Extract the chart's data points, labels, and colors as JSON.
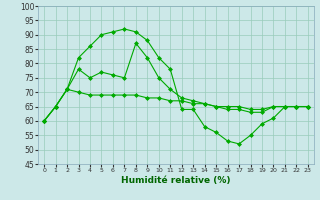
{
  "xlabel": "Humidité relative (%)",
  "xlim": [
    -0.5,
    23.5
  ],
  "ylim": [
    45,
    100
  ],
  "yticks": [
    45,
    50,
    55,
    60,
    65,
    70,
    75,
    80,
    85,
    90,
    95,
    100
  ],
  "xticks": [
    0,
    1,
    2,
    3,
    4,
    5,
    6,
    7,
    8,
    9,
    10,
    11,
    12,
    13,
    14,
    15,
    16,
    17,
    18,
    19,
    20,
    21,
    22,
    23
  ],
  "background_color": "#cce8e8",
  "grid_color": "#99ccbb",
  "line_color": "#00aa00",
  "series": [
    {
      "x": [
        0,
        1,
        2,
        3,
        4,
        5,
        6,
        7,
        8,
        9,
        10,
        11,
        12,
        13,
        14,
        15,
        16,
        17,
        18,
        19,
        20,
        21,
        22,
        23
      ],
      "y": [
        60,
        65,
        71,
        82,
        86,
        90,
        91,
        92,
        91,
        88,
        82,
        78,
        64,
        64,
        58,
        56,
        53,
        52,
        55,
        59,
        61,
        65,
        65,
        65
      ]
    },
    {
      "x": [
        0,
        1,
        2,
        3,
        4,
        5,
        6,
        7,
        8,
        9,
        10,
        11,
        12,
        13,
        14,
        15,
        16,
        17,
        18,
        19,
        20,
        21,
        22,
        23
      ],
      "y": [
        60,
        65,
        71,
        78,
        75,
        77,
        76,
        75,
        87,
        82,
        75,
        71,
        68,
        67,
        66,
        65,
        64,
        64,
        63,
        63,
        65,
        65,
        65,
        65
      ]
    },
    {
      "x": [
        0,
        1,
        2,
        3,
        4,
        5,
        6,
        7,
        8,
        9,
        10,
        11,
        12,
        13,
        14,
        15,
        16,
        17,
        18,
        19,
        20,
        21,
        22,
        23
      ],
      "y": [
        60,
        65,
        71,
        70,
        69,
        69,
        69,
        69,
        69,
        68,
        68,
        67,
        67,
        66,
        66,
        65,
        65,
        65,
        64,
        64,
        65,
        65,
        65,
        65
      ]
    }
  ]
}
